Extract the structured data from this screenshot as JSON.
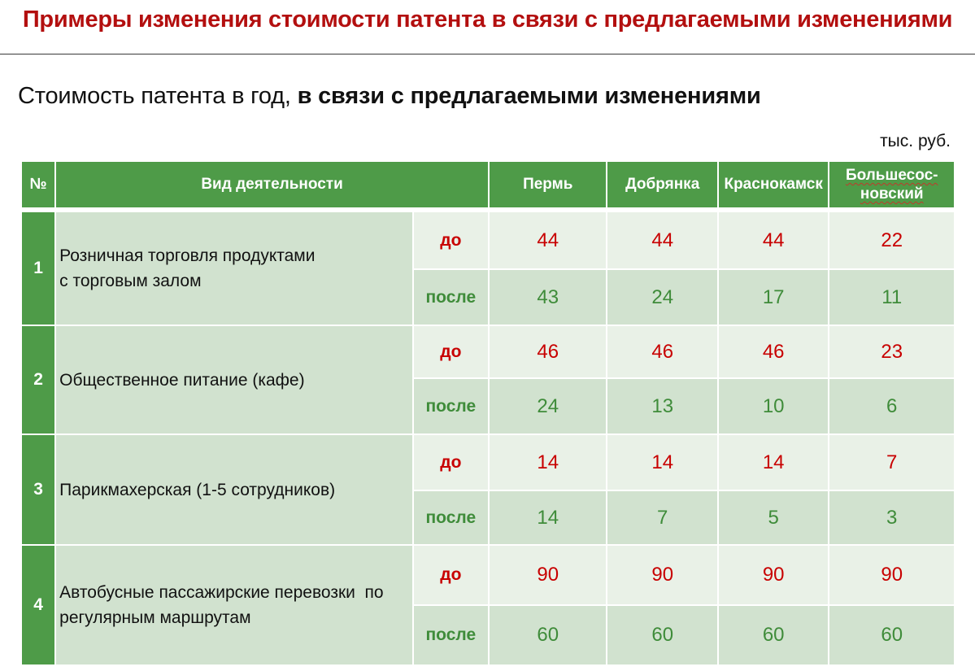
{
  "title": "Примеры изменения стоимости патента в связи с предлагаемыми изменениями",
  "subtitle_regular": "Стоимость патента в год, ",
  "subtitle_bold": "в связи с предлагаемыми изменениями",
  "units": "тыс. руб.",
  "table": {
    "headers": {
      "num": "№",
      "activity": "Вид деятельности",
      "cities": [
        "Пермь",
        "Добрянка",
        "Краснокамск",
        "Большесос-новский"
      ]
    },
    "labels": {
      "before": "до",
      "after": "после"
    },
    "rows": [
      {
        "num": "1",
        "activity_lines": [
          "Розничная торговля продуктами",
          "с торговым залом"
        ],
        "before": [
          "44",
          "44",
          "44",
          "22"
        ],
        "after": [
          "43",
          "24",
          "17",
          "11"
        ]
      },
      {
        "num": "2",
        "activity_lines": [
          "Общественное питание (кафе)"
        ],
        "before": [
          "46",
          "46",
          "46",
          "23"
        ],
        "after": [
          "24",
          "13",
          "10",
          "6"
        ]
      },
      {
        "num": "3",
        "activity_lines": [
          "Парикмахерская (1-5 сотрудников)"
        ],
        "before": [
          "14",
          "14",
          "14",
          "7"
        ],
        "after": [
          "14",
          "7",
          "5",
          "3"
        ]
      },
      {
        "num": "4",
        "activity_lines": [
          "Автобусные пассажирские перевозки  по",
          "регулярным маршрутам"
        ],
        "before": [
          "90",
          "90",
          "90",
          "90"
        ],
        "after": [
          "60",
          "60",
          "60",
          "60"
        ]
      }
    ]
  },
  "colors": {
    "title": "#b30f0f",
    "header_green": "#4e9b48",
    "before_text": "#c80000",
    "after_text": "#3f8c3a",
    "light_cell": "#e9f1e7",
    "dark_cell": "#d1e2cf"
  }
}
